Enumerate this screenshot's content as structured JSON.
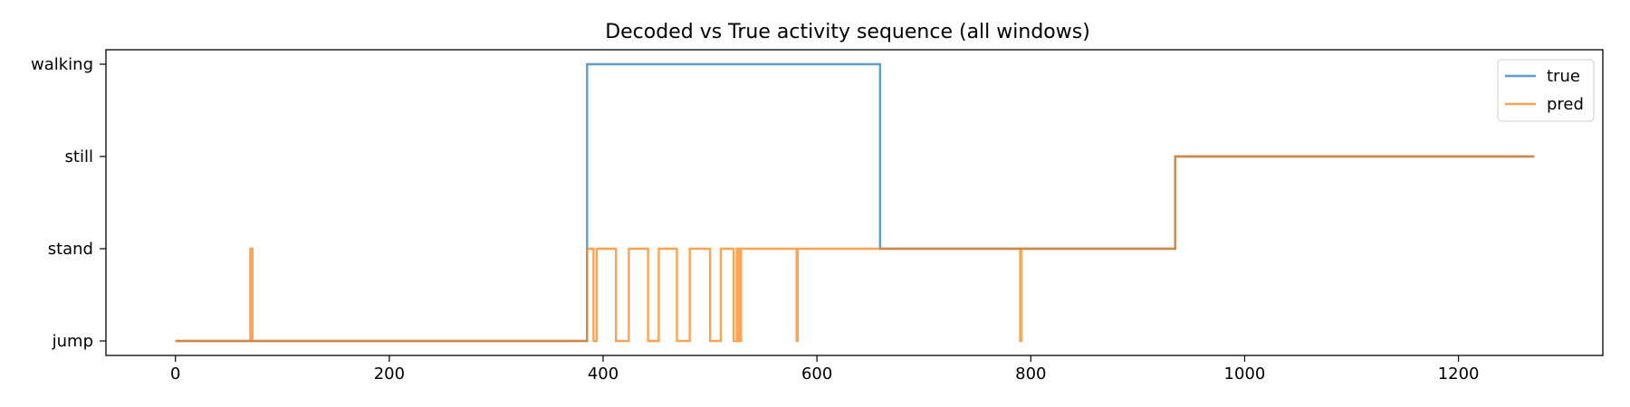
{
  "chart_data": {
    "type": "line",
    "title": "Decoded vs True activity sequence (all windows)",
    "xlabel": "",
    "ylabel": "",
    "xlim": [
      -65,
      1335
    ],
    "ylim_categories": [
      "jump",
      "stand",
      "still",
      "walking"
    ],
    "xticks": [
      0,
      200,
      400,
      600,
      800,
      1000,
      1200
    ],
    "grid": false,
    "legend_position": "top-right",
    "series": [
      {
        "name": "true",
        "color": "#1f77b4",
        "steps": [
          [
            0,
            "jump"
          ],
          [
            385,
            "walking"
          ],
          [
            659,
            "stand"
          ],
          [
            935,
            "still"
          ],
          [
            1271,
            "still"
          ]
        ]
      },
      {
        "name": "pred",
        "color": "#ff7f0e",
        "steps": [
          [
            0,
            "jump"
          ],
          [
            70,
            "stand"
          ],
          [
            72,
            "jump"
          ],
          [
            385,
            "stand"
          ],
          [
            391,
            "jump"
          ],
          [
            394,
            "stand"
          ],
          [
            412,
            "jump"
          ],
          [
            424,
            "stand"
          ],
          [
            442,
            "jump"
          ],
          [
            452,
            "stand"
          ],
          [
            469,
            "jump"
          ],
          [
            481,
            "stand"
          ],
          [
            500,
            "jump"
          ],
          [
            510,
            "stand"
          ],
          [
            522,
            "jump"
          ],
          [
            525,
            "stand"
          ],
          [
            527,
            "jump"
          ],
          [
            529,
            "stand"
          ],
          [
            581,
            "jump"
          ],
          [
            582,
            "stand"
          ],
          [
            790,
            "jump"
          ],
          [
            791,
            "stand"
          ],
          [
            935,
            "still"
          ],
          [
            1271,
            "still"
          ]
        ]
      }
    ]
  }
}
